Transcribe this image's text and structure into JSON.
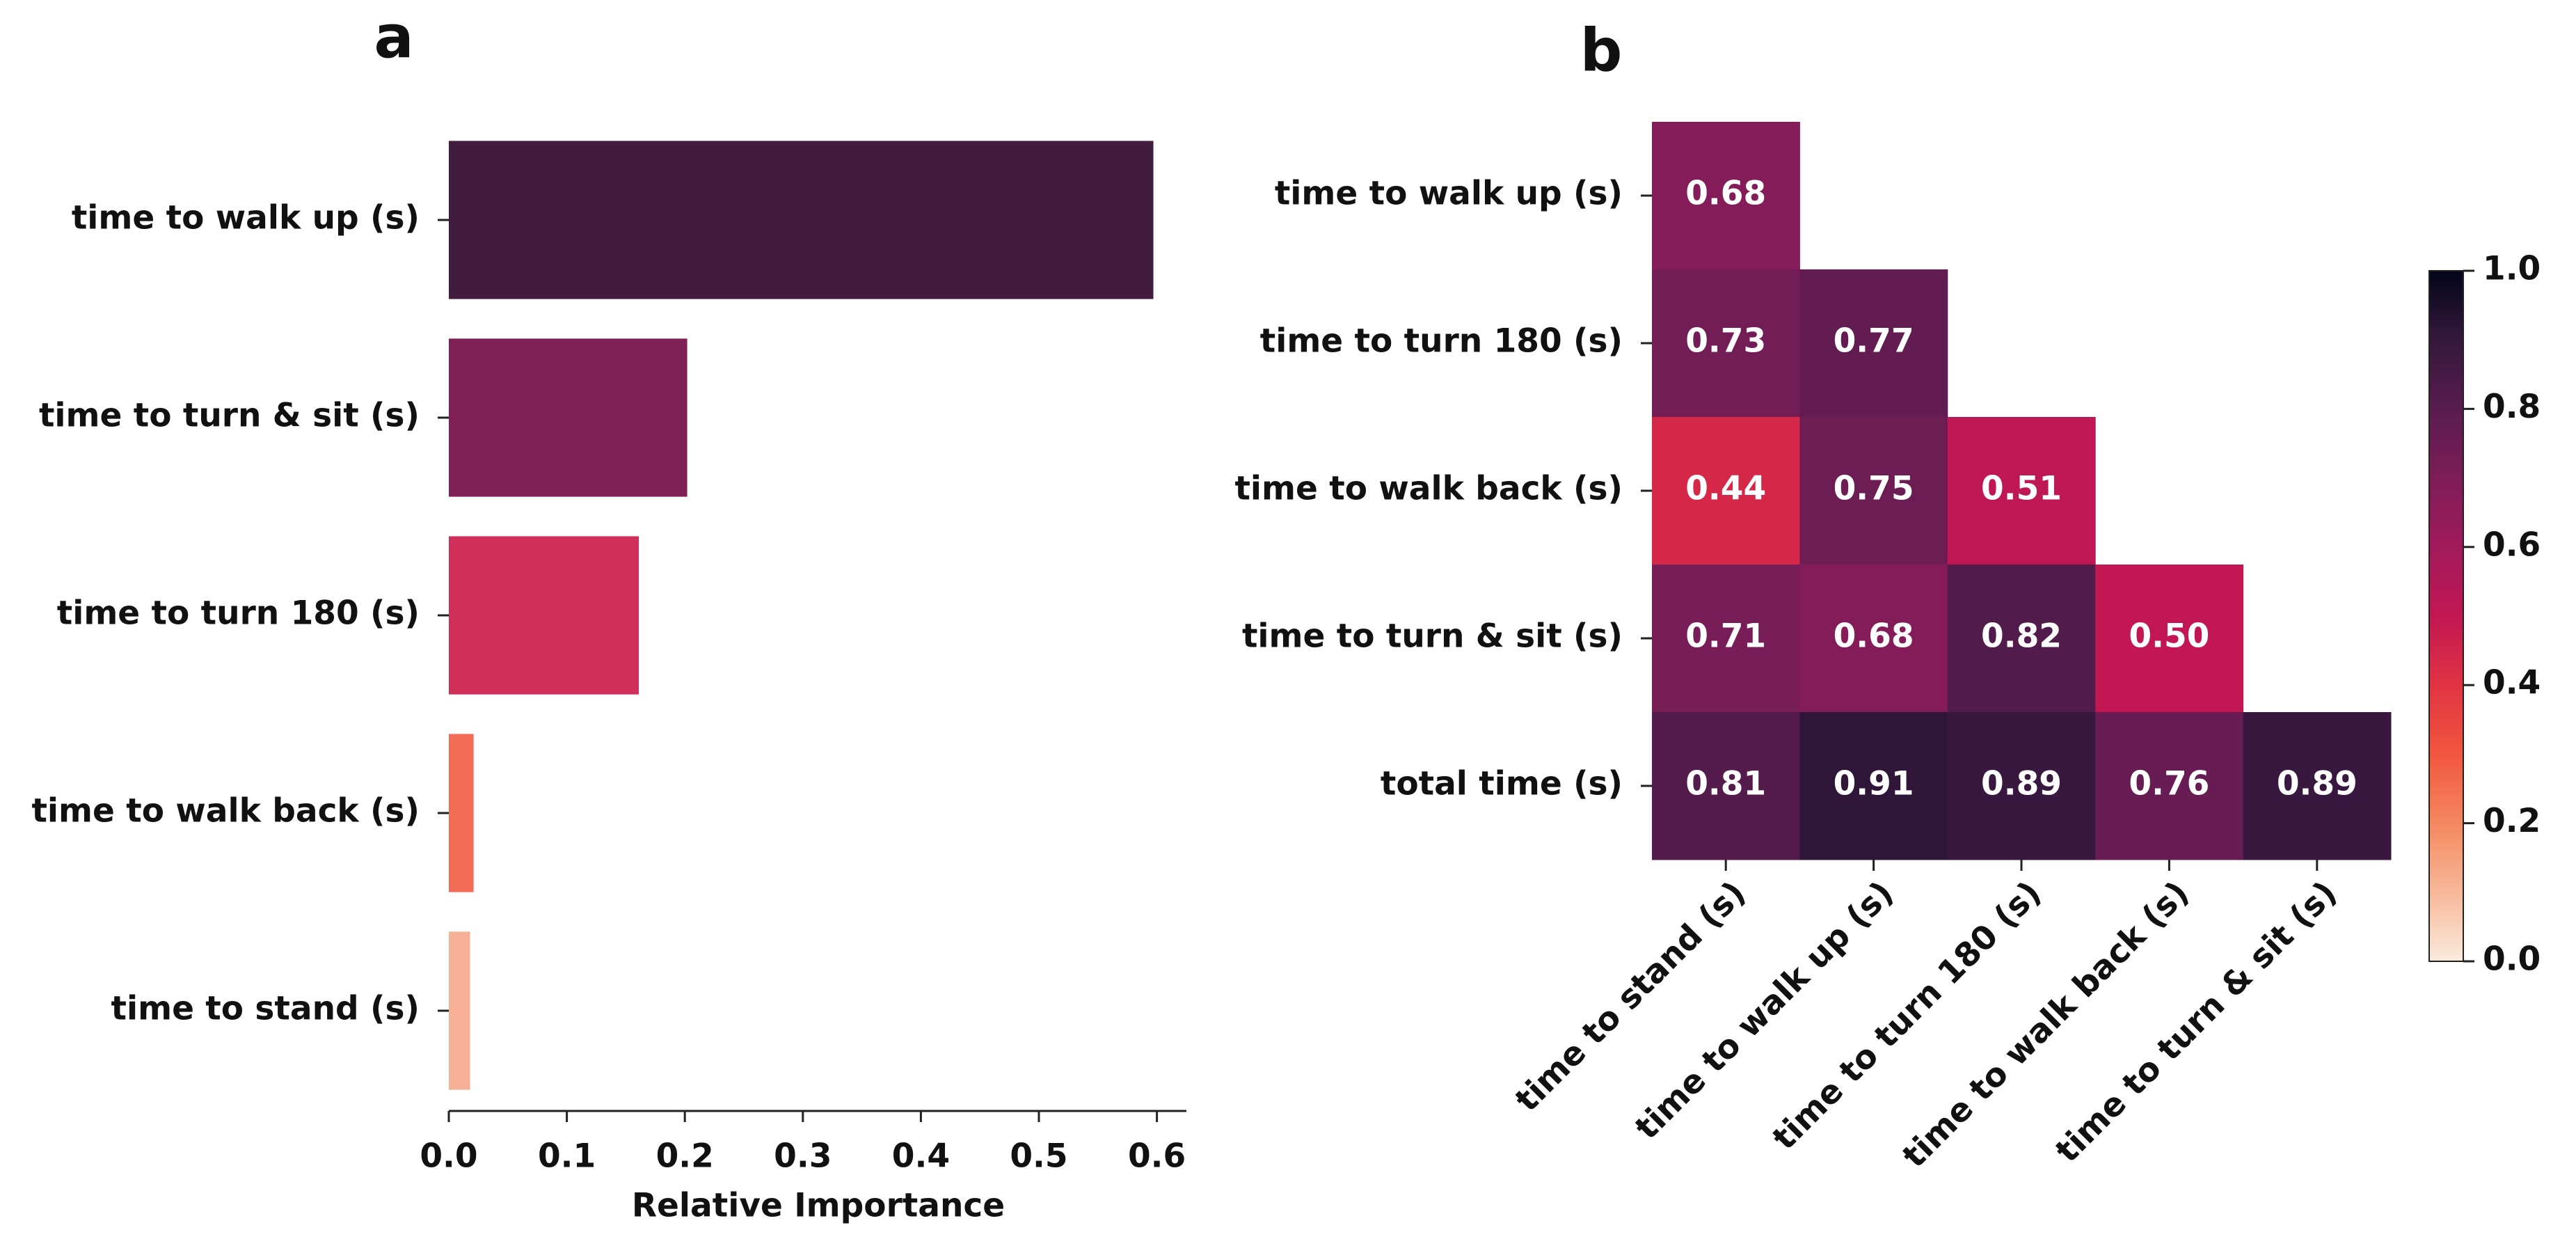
{
  "chart_data": [
    {
      "type": "barh",
      "title": "a",
      "categories": [
        "time to walk up (s)",
        "time to turn & sit (s)",
        "time to turn 180 (s)",
        "time to walk back (s)",
        "time to stand (s)"
      ],
      "values": [
        0.597,
        0.202,
        0.161,
        0.021,
        0.018
      ],
      "colors": [
        "#421c3e",
        "#7f2157",
        "#d02f5a",
        "#f26b55",
        "#f6b096"
      ],
      "xlabel": "Relative Importance",
      "xlim": [
        0,
        0.625
      ],
      "xticks": [
        {
          "value": 0,
          "label": "0.0"
        },
        0.1,
        0.2,
        0.3,
        0.4,
        0.5,
        0.6
      ]
    },
    {
      "type": "heatmap",
      "title": "b",
      "rows": [
        "time to walk up (s)",
        "time to turn 180 (s)",
        "time to walk back (s)",
        "time to turn & sit (s)",
        "total time (s)"
      ],
      "columns": [
        "time to stand (s)",
        "time to walk up (s)",
        "time to turn 180 (s)",
        "time to walk back (s)",
        "time to turn & sit (s)"
      ],
      "values": [
        [
          0.68,
          null,
          null,
          null,
          null
        ],
        [
          0.73,
          0.77,
          null,
          null,
          null
        ],
        [
          0.44,
          0.75,
          0.51,
          null,
          null
        ],
        [
          0.71,
          0.68,
          0.82,
          0.5,
          null
        ],
        [
          0.81,
          0.91,
          0.89,
          0.76,
          0.89
        ]
      ],
      "value_labels": [
        [
          "0.68",
          null,
          null,
          null,
          null
        ],
        [
          "0.73",
          "0.77",
          null,
          null,
          null
        ],
        [
          "0.44",
          "0.75",
          "0.51",
          null,
          null
        ],
        [
          "0.71",
          "0.68",
          "0.82",
          "0.50",
          null
        ],
        [
          "0.81",
          "0.91",
          "0.89",
          "0.76",
          "0.89"
        ]
      ],
      "colorbar_lim": [
        0,
        1
      ],
      "colorbar_ticks": [
        {
          "value": 0,
          "label": "0.0"
        },
        0.2,
        0.4,
        0.6,
        0.8,
        {
          "value": 1,
          "label": "1.0"
        }
      ],
      "colormap": [
        "#faebdd",
        "#f7b899",
        "#f58860",
        "#f1563f",
        "#e13342",
        "#c21753",
        "#a11a5b",
        "#7d1d59",
        "#581c4f",
        "#34183c",
        "#03051a"
      ]
    }
  ]
}
